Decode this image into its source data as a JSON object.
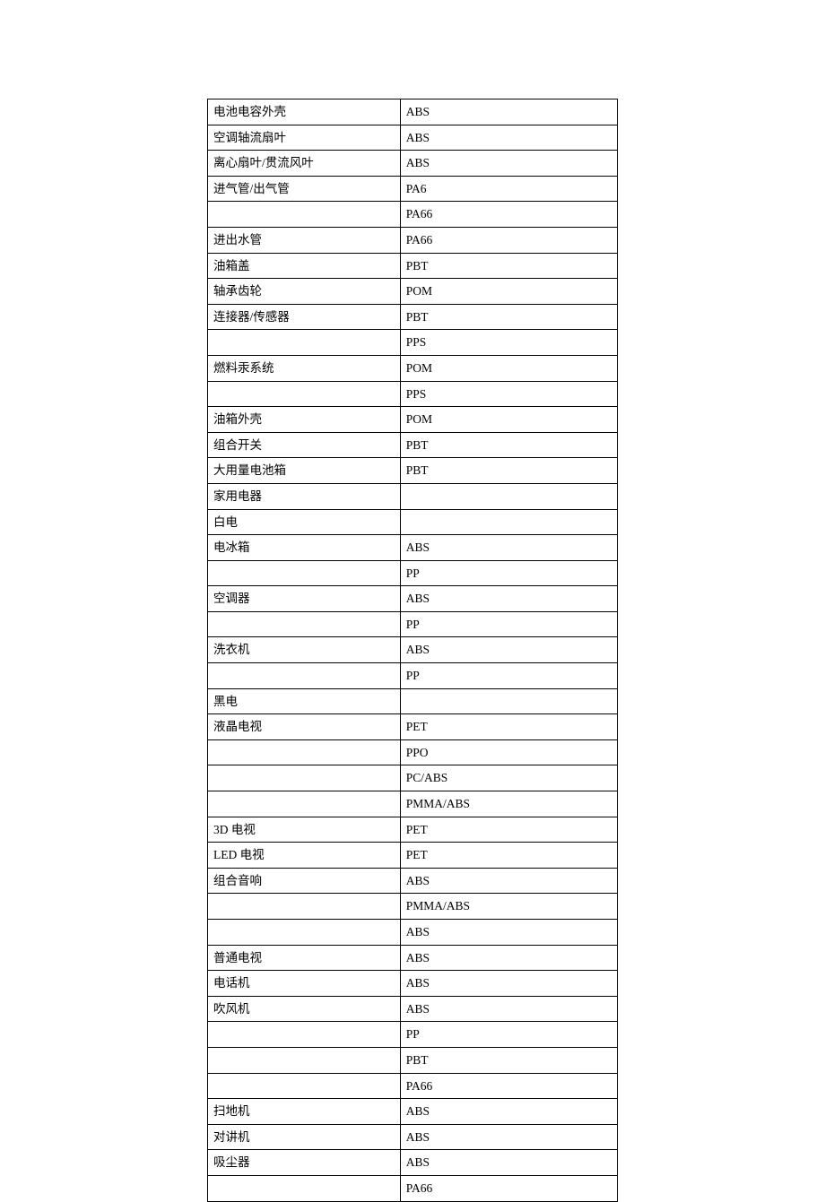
{
  "table": {
    "rows": [
      {
        "left": "电池电容外壳",
        "right": "ABS"
      },
      {
        "left": "空调轴流扇叶",
        "right": "ABS"
      },
      {
        "left": "离心扇叶/贯流风叶",
        "right": "ABS"
      },
      {
        "left": "进气管/出气管",
        "right": "PA6"
      },
      {
        "left": "",
        "right": "PA66"
      },
      {
        "left": "进出水管",
        "right": "PA66"
      },
      {
        "left": "油箱盖",
        "right": "PBT"
      },
      {
        "left": "轴承齿轮",
        "right": "POM"
      },
      {
        "left": "连接器/传感器",
        "right": "PBT"
      },
      {
        "left": "",
        "right": "PPS"
      },
      {
        "left": "燃料汞系统",
        "right": "POM"
      },
      {
        "left": "",
        "right": "PPS"
      },
      {
        "left": "油箱外壳",
        "right": "POM"
      },
      {
        "left": "组合开关",
        "right": "PBT"
      },
      {
        "left": "大用量电池箱",
        "right": "PBT"
      },
      {
        "left": "家用电器",
        "right": ""
      },
      {
        "left": "白电",
        "right": ""
      },
      {
        "left": "电冰箱",
        "right": "ABS"
      },
      {
        "left": "",
        "right": "PP"
      },
      {
        "left": "空调器",
        "right": "ABS"
      },
      {
        "left": "",
        "right": "PP"
      },
      {
        "left": "洗衣机",
        "right": "ABS"
      },
      {
        "left": "",
        "right": "PP"
      },
      {
        "left": "黑电",
        "right": ""
      },
      {
        "left": "液晶电视",
        "right": "PET"
      },
      {
        "left": "",
        "right": "PPO"
      },
      {
        "left": "",
        "right": "PC/ABS"
      },
      {
        "left": "",
        "right": "PMMA/ABS"
      },
      {
        "left": "3D 电视",
        "right": "PET"
      },
      {
        "left": "LED 电视",
        "right": "PET"
      },
      {
        "left": "组合音响",
        "right": "ABS"
      },
      {
        "left": "",
        "right": "PMMA/ABS"
      },
      {
        "left": "",
        "right": "ABS"
      },
      {
        "left": "普通电视",
        "right": "ABS"
      },
      {
        "left": "电话机",
        "right": "ABS"
      },
      {
        "left": "吹风机",
        "right": "ABS"
      },
      {
        "left": "",
        "right": "PP"
      },
      {
        "left": "",
        "right": "PBT"
      },
      {
        "left": "",
        "right": "PA66"
      },
      {
        "left": "扫地机",
        "right": "ABS"
      },
      {
        "left": "对讲机",
        "right": "ABS"
      },
      {
        "left": "吸尘器",
        "right": "ABS"
      },
      {
        "left": "",
        "right": "PA66"
      }
    ],
    "border_color": "#000000",
    "background_color": "#ffffff",
    "font_size": 13.5,
    "col_widths": [
      "47%",
      "53%"
    ]
  }
}
